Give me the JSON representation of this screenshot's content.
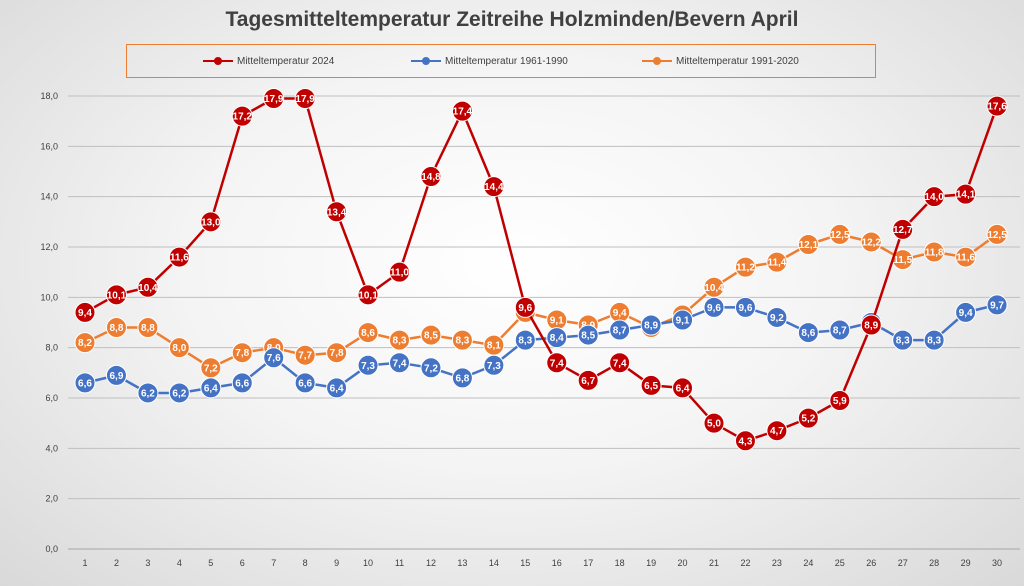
{
  "chart_data": {
    "type": "line",
    "title": "Tagesmitteltemperatur Zeitreihe Holzminden/Bevern April",
    "xlabel": "",
    "ylabel": "",
    "ylim": [
      0,
      18
    ],
    "y_ticks": [
      "0,0",
      "2,0",
      "4,0",
      "6,0",
      "8,0",
      "10,0",
      "12,0",
      "14,0",
      "16,0",
      "18,0"
    ],
    "categories": [
      "1",
      "2",
      "3",
      "4",
      "5",
      "6",
      "7",
      "8",
      "9",
      "10",
      "11",
      "12",
      "13",
      "14",
      "15",
      "16",
      "17",
      "18",
      "19",
      "20",
      "21",
      "22",
      "23",
      "24",
      "25",
      "26",
      "27",
      "28",
      "29",
      "30"
    ],
    "grid": "horizontal",
    "legend_position": "top",
    "series": [
      {
        "name": "Mitteltemperatur 2024",
        "color": "#C00000",
        "values": [
          9.4,
          10.1,
          10.4,
          11.6,
          13.0,
          17.2,
          17.9,
          17.9,
          13.4,
          10.1,
          11.0,
          14.8,
          17.4,
          14.4,
          9.6,
          7.4,
          6.7,
          7.4,
          6.5,
          6.4,
          5.0,
          4.3,
          4.7,
          5.2,
          5.9,
          8.9,
          12.7,
          14.0,
          14.1,
          17.6
        ],
        "labels": [
          "9,4",
          "10,1",
          "10,4",
          "11,6",
          "13,0",
          "17,2",
          "17,9",
          "17,9",
          "13,4",
          "10,1",
          "11,0",
          "14,8",
          "17,4",
          "14,4",
          "9,6",
          "7,4",
          "6,7",
          "7,4",
          "6,5",
          "6,4",
          "5,0",
          "4,3",
          "4,7",
          "5,2",
          "5,9",
          "8,9",
          "12,7",
          "14,0",
          "14,1",
          "17,6"
        ]
      },
      {
        "name": "Mitteltemperatur 1961-1990",
        "color": "#4472C4",
        "values": [
          6.6,
          6.9,
          6.2,
          6.2,
          6.4,
          6.6,
          7.6,
          6.6,
          6.4,
          7.3,
          7.4,
          7.2,
          6.8,
          7.3,
          8.3,
          8.4,
          8.5,
          8.7,
          8.9,
          9.1,
          9.6,
          9.6,
          9.2,
          8.6,
          8.7,
          9.0,
          8.3,
          8.3,
          9.4,
          9.7
        ],
        "labels": [
          "6,6",
          "6,9",
          "6,2",
          "6,2",
          "6,4",
          "6,6",
          "7,6",
          "6,6",
          "6,4",
          "7,3",
          "7,4",
          "7,2",
          "6,8",
          "7,3",
          "8,3",
          "8,4",
          "8,5",
          "8,7",
          "8,9",
          "9,1",
          "9,6",
          "9,6",
          "9,2",
          "8,6",
          "8,7",
          "9,0",
          "8,3",
          "8,3",
          "9,4",
          "9,7"
        ]
      },
      {
        "name": "Mitteltemperatur 1991-2020",
        "color": "#ED7D31",
        "values": [
          8.2,
          8.8,
          8.8,
          8.0,
          7.2,
          7.8,
          8.0,
          7.7,
          7.8,
          8.6,
          8.3,
          8.5,
          8.3,
          8.1,
          9.4,
          9.1,
          8.9,
          9.4,
          8.8,
          9.3,
          10.4,
          11.2,
          11.4,
          12.1,
          12.5,
          12.2,
          11.5,
          11.8,
          11.6,
          12.5
        ],
        "labels": [
          "8,2",
          "8,8",
          "8,8",
          "8,0",
          "7,2",
          "7,8",
          "8,0",
          "7,7",
          "7,8",
          "8,6",
          "8,3",
          "8,5",
          "8,3",
          "8,1",
          "9,4",
          "9,1",
          "8,9",
          "9,4",
          "8,8",
          "9,3",
          "10,4",
          "11,2",
          "11,4",
          "12,1",
          "12,5",
          "12,2",
          "11,5",
          "11,8",
          "11,6",
          "12,5"
        ]
      }
    ]
  }
}
